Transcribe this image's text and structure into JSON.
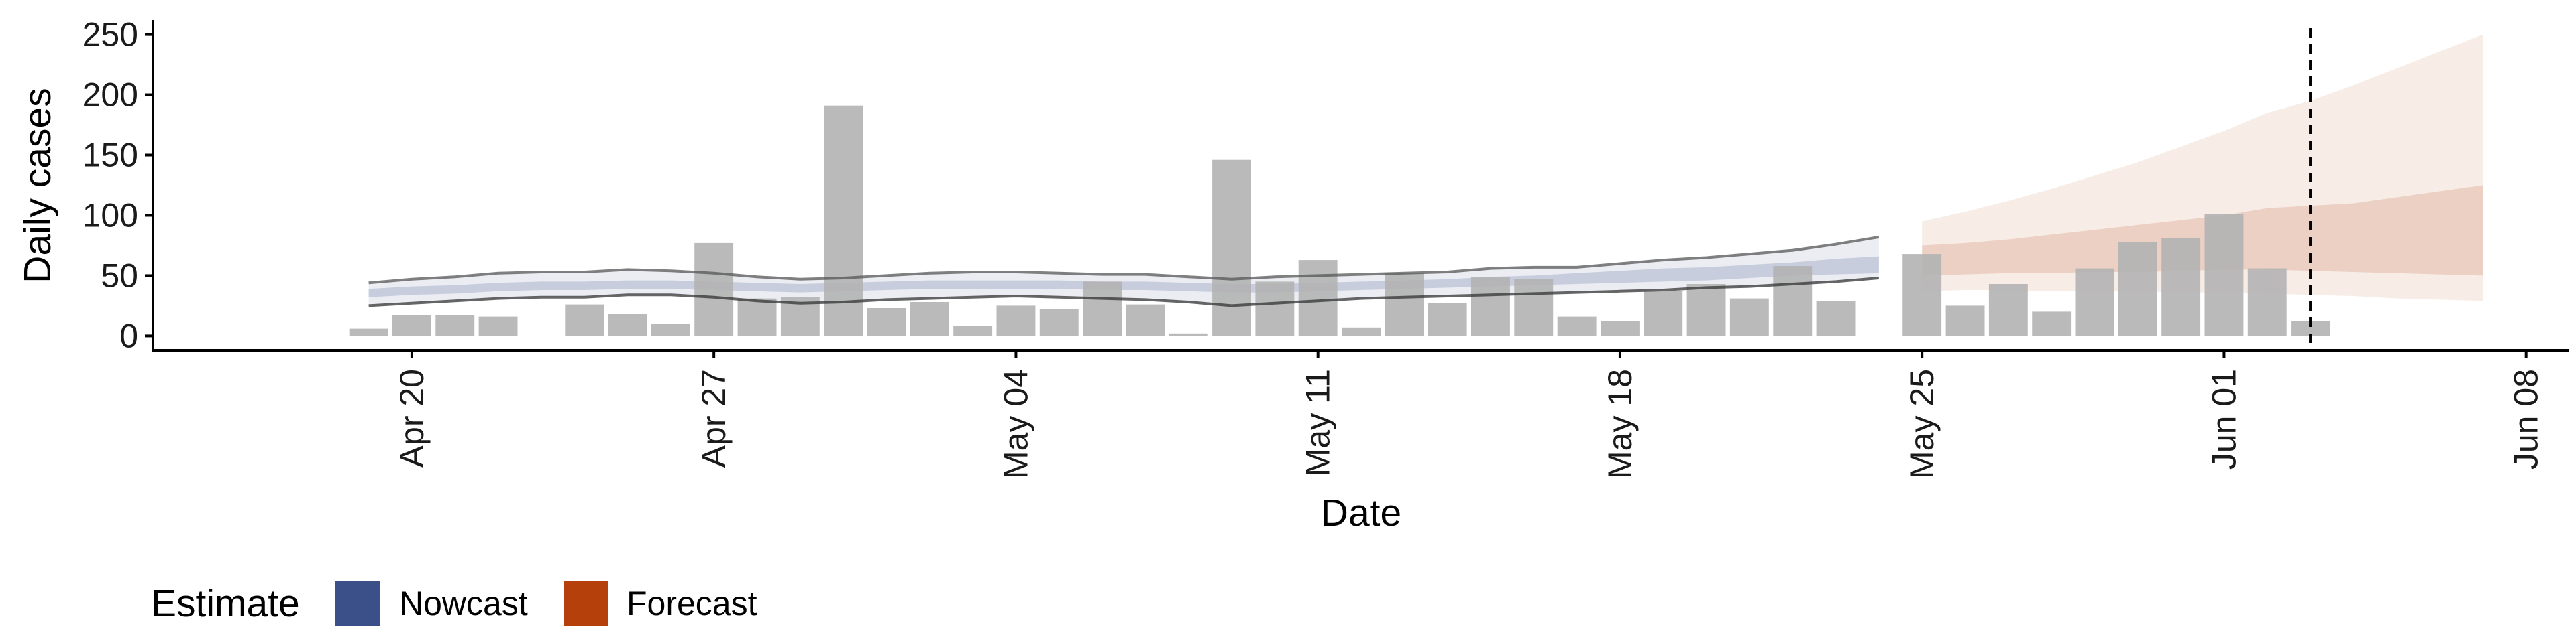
{
  "chart_data": {
    "type": "bar",
    "xlabel": "Date",
    "ylabel": "Daily cases",
    "xlim": [
      "2020-04-14",
      "2020-06-09"
    ],
    "ylim": [
      -12,
      262
    ],
    "x_ticks": [
      "2020-04-20",
      "2020-04-27",
      "2020-05-04",
      "2020-05-11",
      "2020-05-18",
      "2020-05-25",
      "2020-06-01",
      "2020-06-08"
    ],
    "x_tick_labels": [
      "Apr 20",
      "Apr 27",
      "May 04",
      "May 11",
      "May 18",
      "May 25",
      "Jun 01",
      "Jun 08"
    ],
    "y_ticks": [
      0,
      50,
      100,
      150,
      200,
      250
    ],
    "grid": false,
    "vertical_line": {
      "date": "2020-06-03",
      "style": "dashed"
    },
    "bars": {
      "dates": [
        "2020-04-19",
        "2020-04-20",
        "2020-04-21",
        "2020-04-22",
        "2020-04-23",
        "2020-04-24",
        "2020-04-25",
        "2020-04-26",
        "2020-04-27",
        "2020-04-28",
        "2020-04-29",
        "2020-04-30",
        "2020-05-01",
        "2020-05-02",
        "2020-05-03",
        "2020-05-04",
        "2020-05-05",
        "2020-05-06",
        "2020-05-07",
        "2020-05-08",
        "2020-05-09",
        "2020-05-10",
        "2020-05-11",
        "2020-05-12",
        "2020-05-13",
        "2020-05-14",
        "2020-05-15",
        "2020-05-16",
        "2020-05-17",
        "2020-05-18",
        "2020-05-19",
        "2020-05-20",
        "2020-05-21",
        "2020-05-22",
        "2020-05-23",
        "2020-05-24",
        "2020-05-25",
        "2020-05-26",
        "2020-05-27",
        "2020-05-28",
        "2020-05-29",
        "2020-05-30",
        "2020-05-31",
        "2020-06-01",
        "2020-06-02",
        "2020-06-03"
      ],
      "values": [
        6,
        17,
        17,
        16,
        0,
        26,
        18,
        10,
        77,
        31,
        32,
        191,
        23,
        28,
        8,
        25,
        22,
        45,
        26,
        2,
        146,
        45,
        63,
        7,
        52,
        27,
        49,
        47,
        16,
        12,
        37,
        43,
        31,
        58,
        29,
        0,
        68,
        25,
        43,
        20,
        56,
        78,
        81,
        101,
        56,
        12
      ],
      "color": "#b3b3b3"
    },
    "series": [
      {
        "name": "Nowcast",
        "color": "#3b5088",
        "dates": [
          "2020-04-19",
          "2020-04-20",
          "2020-04-21",
          "2020-04-22",
          "2020-04-23",
          "2020-04-24",
          "2020-04-25",
          "2020-04-26",
          "2020-04-27",
          "2020-04-28",
          "2020-04-29",
          "2020-04-30",
          "2020-05-01",
          "2020-05-02",
          "2020-05-03",
          "2020-05-04",
          "2020-05-05",
          "2020-05-06",
          "2020-05-07",
          "2020-05-08",
          "2020-05-09",
          "2020-05-10",
          "2020-05-11",
          "2020-05-12",
          "2020-05-13",
          "2020-05-14",
          "2020-05-15",
          "2020-05-16",
          "2020-05-17",
          "2020-05-18",
          "2020-05-19",
          "2020-05-20",
          "2020-05-21",
          "2020-05-22",
          "2020-05-23",
          "2020-05-24"
        ],
        "median": [
          35,
          37,
          38,
          40,
          41,
          41,
          42,
          42,
          41,
          40,
          39,
          40,
          41,
          42,
          42,
          42,
          42,
          41,
          41,
          40,
          39,
          39,
          40,
          41,
          42,
          43,
          45,
          46,
          47,
          49,
          50,
          51,
          53,
          55,
          57,
          59
        ],
        "lower_50": [
          32,
          34,
          35,
          37,
          38,
          38,
          39,
          39,
          38,
          37,
          36,
          37,
          38,
          39,
          39,
          39,
          39,
          38,
          38,
          37,
          36,
          36,
          37,
          38,
          39,
          40,
          41,
          42,
          43,
          44,
          45,
          46,
          48,
          50,
          51,
          52
        ],
        "upper_50": [
          39,
          41,
          42,
          44,
          45,
          45,
          46,
          46,
          45,
          44,
          43,
          44,
          45,
          46,
          46,
          46,
          46,
          45,
          45,
          44,
          43,
          43,
          44,
          45,
          46,
          47,
          49,
          50,
          52,
          54,
          56,
          57,
          59,
          61,
          64,
          66
        ],
        "lower_90": [
          25,
          27,
          29,
          31,
          32,
          32,
          34,
          34,
          32,
          29,
          27,
          28,
          30,
          31,
          32,
          33,
          32,
          31,
          30,
          28,
          25,
          27,
          29,
          31,
          32,
          33,
          34,
          35,
          36,
          37,
          38,
          40,
          41,
          43,
          45,
          48
        ],
        "upper_90": [
          44,
          47,
          49,
          52,
          53,
          53,
          55,
          54,
          52,
          49,
          47,
          48,
          50,
          52,
          53,
          53,
          52,
          51,
          51,
          49,
          47,
          49,
          50,
          51,
          52,
          53,
          56,
          57,
          57,
          60,
          63,
          65,
          68,
          71,
          76,
          82
        ]
      },
      {
        "name": "Forecast",
        "color": "#b5400b",
        "dates": [
          "2020-05-25",
          "2020-05-26",
          "2020-05-27",
          "2020-05-28",
          "2020-05-29",
          "2020-05-30",
          "2020-05-31",
          "2020-06-01",
          "2020-06-02",
          "2020-06-03",
          "2020-06-04",
          "2020-06-05",
          "2020-06-06",
          "2020-06-07"
        ],
        "lower_50": [
          50,
          51,
          52,
          52,
          53,
          53,
          54,
          55,
          55,
          54,
          53,
          52,
          51,
          50
        ],
        "upper_50": [
          75,
          77,
          80,
          84,
          88,
          92,
          96,
          100,
          106,
          108,
          110,
          115,
          120,
          125
        ],
        "lower_90": [
          37,
          38,
          38,
          37,
          37,
          37,
          36,
          36,
          35,
          34,
          33,
          31,
          30,
          29
        ],
        "upper_90": [
          95,
          103,
          112,
          122,
          133,
          144,
          157,
          170,
          185,
          195,
          208,
          222,
          236,
          250
        ]
      }
    ],
    "legend": {
      "title": "Estimate",
      "position": "bottom-left",
      "items": [
        {
          "label": "Nowcast",
          "color": "#3b5088"
        },
        {
          "label": "Forecast",
          "color": "#b5400b"
        }
      ]
    }
  }
}
